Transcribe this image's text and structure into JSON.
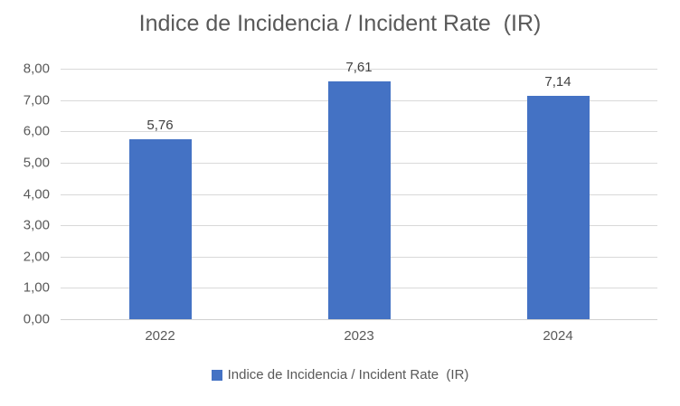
{
  "chart_data": {
    "type": "bar",
    "title": "Indice de Incidencia / Incident Rate  (IR)",
    "categories": [
      "2022",
      "2023",
      "2024"
    ],
    "series": [
      {
        "name": "Indice de Incidencia / Incident Rate  (IR)",
        "values": [
          5.76,
          7.61,
          7.14
        ]
      }
    ],
    "value_labels": [
      "5,76",
      "7,61",
      "7,14"
    ],
    "xlabel": "",
    "ylabel": "",
    "ylim": [
      0,
      8
    ],
    "ytick_step": 1,
    "ytick_labels": [
      "0,00",
      "1,00",
      "2,00",
      "3,00",
      "4,00",
      "5,00",
      "6,00",
      "7,00",
      "8,00"
    ],
    "grid": true,
    "legend_position": "bottom",
    "legend_label": "Indice de Incidencia / Incident Rate  (IR)",
    "colors": {
      "bar": "#4472C4",
      "title_text": "#595959",
      "axis_label_text": "#595959",
      "data_label_text": "#404040",
      "gridline": "#D9D9D9",
      "axis_line": "#D0D0D0",
      "background": "#FFFFFF"
    }
  }
}
